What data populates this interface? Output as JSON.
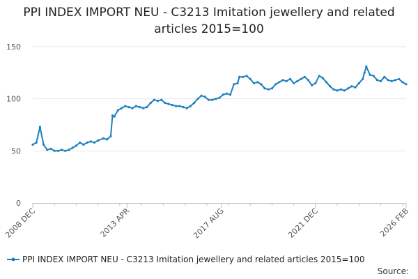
{
  "title": "PPI INDEX IMPORT NEU - C3213 Imitation jewellery and related articles 2015=100",
  "source_label": "Source:",
  "colors": {
    "series": "#1f7fbd",
    "grid": "#e6e6e6",
    "axis": "#c0c0c0",
    "tick_text": "#555555"
  },
  "chart_data": {
    "type": "line",
    "title": "PPI INDEX IMPORT NEU - C3213 Imitation jewellery and related articles 2015=100",
    "xlabel": "",
    "ylabel": "",
    "ylim": [
      0,
      150
    ],
    "yticks": [
      0,
      50,
      100,
      150
    ],
    "xlim": [
      "2008-12",
      "2026-02"
    ],
    "xticks": [
      {
        "date": "2008-12",
        "label": "2008 DEC"
      },
      {
        "date": "2013-04",
        "label": "2013 APR"
      },
      {
        "date": "2017-08",
        "label": "2017 AUG"
      },
      {
        "date": "2021-12",
        "label": "2021 DEC"
      },
      {
        "date": "2026-02",
        "label": "2026 FEB"
      }
    ],
    "grid": true,
    "legend_position": "bottom",
    "series": [
      {
        "name": "PPI INDEX IMPORT NEU - C3213 Imitation jewellery and related articles 2015=100",
        "points": [
          [
            "2008-12",
            56
          ],
          [
            "2009-02",
            58
          ],
          [
            "2009-04",
            73
          ],
          [
            "2009-06",
            56
          ],
          [
            "2009-08",
            51
          ],
          [
            "2009-10",
            52
          ],
          [
            "2009-12",
            50
          ],
          [
            "2010-02",
            50
          ],
          [
            "2010-04",
            51
          ],
          [
            "2010-06",
            50
          ],
          [
            "2010-08",
            51
          ],
          [
            "2010-10",
            53
          ],
          [
            "2010-12",
            55
          ],
          [
            "2011-02",
            58
          ],
          [
            "2011-04",
            56
          ],
          [
            "2011-06",
            58
          ],
          [
            "2011-08",
            59
          ],
          [
            "2011-10",
            58
          ],
          [
            "2011-12",
            60
          ],
          [
            "2012-03",
            62
          ],
          [
            "2012-05",
            61
          ],
          [
            "2012-07",
            64
          ],
          [
            "2012-08",
            84
          ],
          [
            "2012-09",
            83
          ],
          [
            "2012-11",
            89
          ],
          [
            "2013-01",
            91
          ],
          [
            "2013-03",
            93
          ],
          [
            "2013-05",
            92
          ],
          [
            "2013-07",
            91
          ],
          [
            "2013-09",
            93
          ],
          [
            "2013-11",
            92
          ],
          [
            "2014-01",
            91
          ],
          [
            "2014-03",
            92
          ],
          [
            "2014-05",
            96
          ],
          [
            "2014-07",
            99
          ],
          [
            "2014-09",
            98
          ],
          [
            "2014-11",
            99
          ],
          [
            "2015-01",
            96
          ],
          [
            "2015-03",
            95
          ],
          [
            "2015-05",
            94
          ],
          [
            "2015-07",
            93
          ],
          [
            "2015-09",
            93
          ],
          [
            "2015-11",
            92
          ],
          [
            "2016-01",
            91
          ],
          [
            "2016-03",
            93
          ],
          [
            "2016-05",
            96
          ],
          [
            "2016-07",
            100
          ],
          [
            "2016-09",
            103
          ],
          [
            "2016-11",
            102
          ],
          [
            "2017-01",
            99
          ],
          [
            "2017-03",
            99
          ],
          [
            "2017-05",
            100
          ],
          [
            "2017-07",
            101
          ],
          [
            "2017-09",
            104
          ],
          [
            "2017-11",
            105
          ],
          [
            "2018-01",
            104
          ],
          [
            "2018-03",
            114
          ],
          [
            "2018-05",
            115
          ],
          [
            "2018-06",
            121
          ],
          [
            "2018-08",
            121
          ],
          [
            "2018-10",
            122
          ],
          [
            "2018-12",
            119
          ],
          [
            "2019-02",
            115
          ],
          [
            "2019-04",
            116
          ],
          [
            "2019-06",
            114
          ],
          [
            "2019-08",
            110
          ],
          [
            "2019-10",
            109
          ],
          [
            "2019-12",
            110
          ],
          [
            "2020-02",
            114
          ],
          [
            "2020-04",
            116
          ],
          [
            "2020-06",
            118
          ],
          [
            "2020-08",
            117
          ],
          [
            "2020-10",
            119
          ],
          [
            "2020-12",
            115
          ],
          [
            "2021-02",
            117
          ],
          [
            "2021-04",
            119
          ],
          [
            "2021-06",
            121
          ],
          [
            "2021-08",
            118
          ],
          [
            "2021-10",
            113
          ],
          [
            "2021-12",
            115
          ],
          [
            "2022-02",
            122
          ],
          [
            "2022-04",
            120
          ],
          [
            "2022-06",
            116
          ],
          [
            "2022-08",
            112
          ],
          [
            "2022-10",
            109
          ],
          [
            "2022-12",
            108
          ],
          [
            "2023-02",
            109
          ],
          [
            "2023-04",
            108
          ],
          [
            "2023-06",
            110
          ],
          [
            "2023-08",
            112
          ],
          [
            "2023-10",
            111
          ],
          [
            "2023-12",
            115
          ],
          [
            "2024-02",
            119
          ],
          [
            "2024-03",
            125
          ],
          [
            "2024-04",
            131
          ],
          [
            "2024-06",
            123
          ],
          [
            "2024-08",
            122
          ],
          [
            "2024-10",
            118
          ],
          [
            "2024-12",
            117
          ],
          [
            "2025-02",
            121
          ],
          [
            "2025-04",
            118
          ],
          [
            "2025-06",
            117
          ],
          [
            "2025-08",
            118
          ],
          [
            "2025-10",
            119
          ],
          [
            "2025-12",
            116
          ],
          [
            "2026-02",
            114
          ]
        ]
      }
    ]
  }
}
